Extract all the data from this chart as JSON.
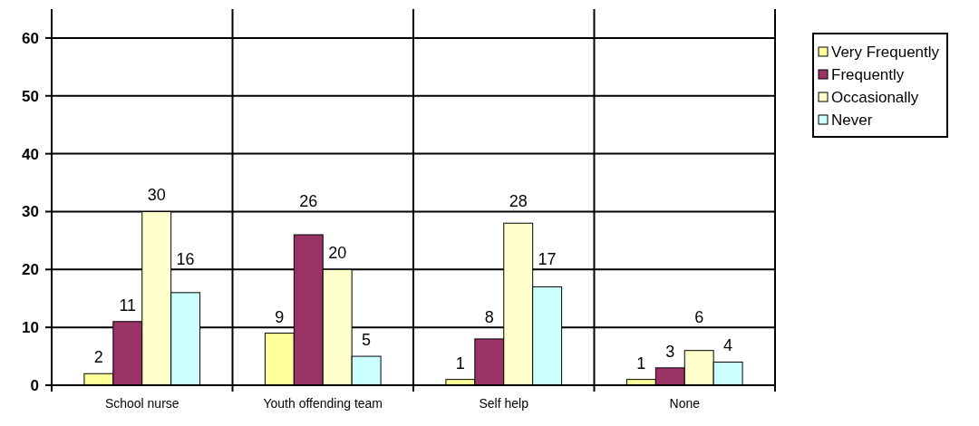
{
  "chart_data": {
    "type": "bar",
    "categories": [
      "School nurse",
      "Youth offending team",
      "Self help",
      "None"
    ],
    "series": [
      {
        "name": "Very Frequently",
        "color": "#ffff99",
        "values": [
          2,
          9,
          1,
          1
        ]
      },
      {
        "name": "Frequently",
        "color": "#993366",
        "values": [
          11,
          26,
          8,
          3
        ]
      },
      {
        "name": "Occasionally",
        "color": "#ffffcc",
        "values": [
          30,
          20,
          28,
          6
        ]
      },
      {
        "name": "Never",
        "color": "#ccffff",
        "values": [
          16,
          5,
          17,
          4
        ]
      }
    ],
    "ylim": [
      0,
      65
    ],
    "yticks": [
      0,
      10,
      20,
      30,
      40,
      50,
      60
    ],
    "grid": true,
    "legend": "right",
    "data_labels": true
  }
}
